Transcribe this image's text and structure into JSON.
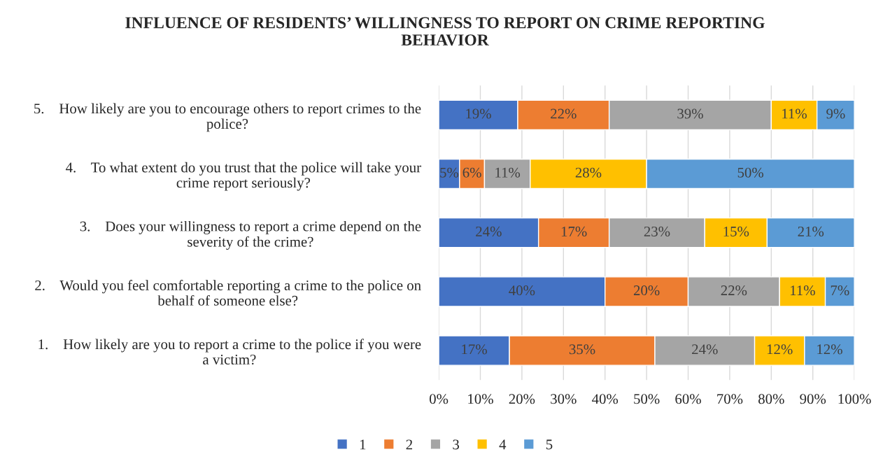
{
  "chart_data": {
    "type": "bar",
    "orientation": "horizontal",
    "stacked": true,
    "title": "INFLUENCE OF RESIDENTS’ WILLINGNESS TO REPORT ON CRIME REPORTING\nBEHAVIOR",
    "categories": [
      "5.    How likely are you to encourage others to report crimes to the\npolice?",
      "4.    To what extent do you trust that the police will take your\ncrime report seriously?",
      "3.    Does your willingness to report a crime depend on the\nseverity of the crime?",
      "2.    Would you feel comfortable reporting a crime to the police on\nbehalf of someone else?",
      "1.    How likely are you to report a crime to the police if you were\na victim?"
    ],
    "series": [
      {
        "name": "1",
        "color": "#4472c4",
        "values": [
          19,
          5,
          24,
          40,
          17
        ],
        "value_labels": [
          "19%",
          "5%",
          "24%",
          "40%",
          "17%"
        ]
      },
      {
        "name": "2",
        "color": "#ed7d31",
        "values": [
          22,
          6,
          17,
          20,
          35
        ],
        "value_labels": [
          "22%",
          "6%",
          "17%",
          "20%",
          "35%"
        ]
      },
      {
        "name": "3",
        "color": "#a5a5a5",
        "values": [
          39,
          11,
          23,
          22,
          24
        ],
        "value_labels": [
          "39%",
          "11%",
          "23%",
          "22%",
          "24%"
        ]
      },
      {
        "name": "4",
        "color": "#ffc000",
        "values": [
          11,
          28,
          15,
          11,
          12
        ],
        "value_labels": [
          "11%",
          "28%",
          "15%",
          "11%",
          "12%"
        ]
      },
      {
        "name": "5",
        "color": "#5b9bd5",
        "values": [
          9,
          50,
          21,
          7,
          12
        ],
        "value_labels": [
          "9%",
          "50%",
          "21%",
          "7%",
          "12%"
        ]
      }
    ],
    "xlim": [
      0,
      100
    ],
    "xticks": [
      {
        "value": 0,
        "label": "0%"
      },
      {
        "value": 10,
        "label": "10%"
      },
      {
        "value": 20,
        "label": "20%"
      },
      {
        "value": 30,
        "label": "30%"
      },
      {
        "value": 40,
        "label": "40%"
      },
      {
        "value": 50,
        "label": "50%"
      },
      {
        "value": 60,
        "label": "60%"
      },
      {
        "value": 70,
        "label": "70%"
      },
      {
        "value": 80,
        "label": "80%"
      },
      {
        "value": 90,
        "label": "90%"
      },
      {
        "value": 100,
        "label": "100%"
      }
    ],
    "grid": "x",
    "legend": "bottom"
  }
}
